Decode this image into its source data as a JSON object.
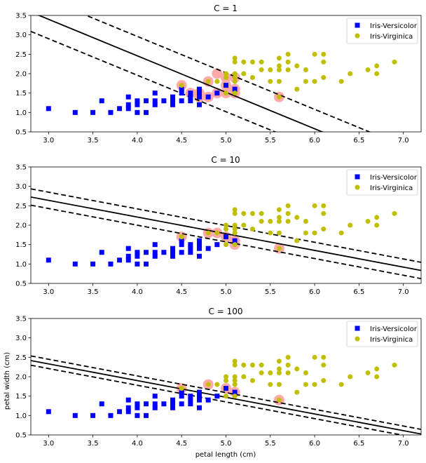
{
  "chart_data": [
    {
      "type": "scatter",
      "title": "C = 1",
      "xlabel": "",
      "ylabel": "",
      "xlim": [
        2.8,
        7.2
      ],
      "ylim": [
        0.5,
        3.5
      ],
      "xticks": [
        "3.0",
        "3.5",
        "4.0",
        "4.5",
        "5.0",
        "5.5",
        "6.0",
        "6.5",
        "7.0"
      ],
      "yticks": [
        "0.5",
        "1.0",
        "1.5",
        "2.0",
        "2.5",
        "3.0",
        "3.5"
      ],
      "decision_line": {
        "intercept": 6.22,
        "slope": -0.94
      },
      "margin_offset": 0.5,
      "support_vectors": [
        [
          4.5,
          1.7
        ],
        [
          4.6,
          1.5
        ],
        [
          4.7,
          1.4
        ],
        [
          4.7,
          1.5
        ],
        [
          4.8,
          1.8
        ],
        [
          4.8,
          1.4
        ],
        [
          4.9,
          1.5
        ],
        [
          4.9,
          2.0
        ],
        [
          5.0,
          1.7
        ],
        [
          5.0,
          1.5
        ],
        [
          5.0,
          1.9
        ],
        [
          5.1,
          1.5
        ],
        [
          5.1,
          1.6
        ],
        [
          5.1,
          1.9
        ],
        [
          5.6,
          1.4
        ]
      ]
    },
    {
      "type": "scatter",
      "title": "C = 10",
      "xlabel": "",
      "ylabel": "",
      "xlim": [
        2.8,
        7.2
      ],
      "ylim": [
        0.5,
        3.5
      ],
      "xticks": [
        "3.0",
        "3.5",
        "4.0",
        "4.5",
        "5.0",
        "5.5",
        "6.0",
        "6.5",
        "7.0"
      ],
      "yticks": [
        "0.5",
        "1.0",
        "1.5",
        "2.0",
        "2.5",
        "3.0",
        "3.5"
      ],
      "decision_line": {
        "intercept": 3.93,
        "slope": -0.43
      },
      "margin_offset": 0.21,
      "support_vectors": [
        [
          4.5,
          1.7
        ],
        [
          4.8,
          1.8
        ],
        [
          4.9,
          1.8
        ],
        [
          5.0,
          1.7
        ],
        [
          5.1,
          1.6
        ],
        [
          5.1,
          1.5
        ],
        [
          5.6,
          1.4
        ]
      ]
    },
    {
      "type": "scatter",
      "title": "C = 100",
      "xlabel": "petal length (cm)",
      "ylabel": "petal width (cm)",
      "xlim": [
        2.8,
        7.2
      ],
      "ylim": [
        0.5,
        3.5
      ],
      "xticks": [
        "3.0",
        "3.5",
        "4.0",
        "4.5",
        "5.0",
        "5.5",
        "6.0",
        "6.5",
        "7.0"
      ],
      "yticks": [
        "0.5",
        "1.0",
        "1.5",
        "2.0",
        "2.5",
        "3.0",
        "3.5"
      ],
      "decision_line": {
        "intercept": 3.62,
        "slope": -0.43
      },
      "margin_offset": 0.12,
      "support_vectors": [
        [
          4.5,
          1.7
        ],
        [
          4.8,
          1.8
        ],
        [
          5.0,
          1.7
        ],
        [
          5.1,
          1.6
        ],
        [
          5.6,
          1.4
        ]
      ]
    }
  ],
  "legend": {
    "versicolor_label": "Iris-Versicolor",
    "virginica_label": "Iris-Virginica",
    "position": "top-right"
  },
  "series": {
    "versicolor": {
      "name": "Iris-Versicolor",
      "color": "#0000ff",
      "marker": "square",
      "points": [
        [
          3.0,
          1.1
        ],
        [
          3.3,
          1.0
        ],
        [
          3.5,
          1.0
        ],
        [
          3.6,
          1.3
        ],
        [
          3.7,
          1.0
        ],
        [
          3.8,
          1.1
        ],
        [
          3.9,
          1.1
        ],
        [
          3.9,
          1.2
        ],
        [
          3.9,
          1.4
        ],
        [
          4.0,
          1.0
        ],
        [
          4.0,
          1.2
        ],
        [
          4.0,
          1.3
        ],
        [
          4.1,
          1.0
        ],
        [
          4.1,
          1.3
        ],
        [
          4.2,
          1.2
        ],
        [
          4.2,
          1.3
        ],
        [
          4.2,
          1.5
        ],
        [
          4.3,
          1.3
        ],
        [
          4.4,
          1.2
        ],
        [
          4.4,
          1.3
        ],
        [
          4.4,
          1.4
        ],
        [
          4.5,
          1.3
        ],
        [
          4.5,
          1.5
        ],
        [
          4.5,
          1.6
        ],
        [
          4.6,
          1.3
        ],
        [
          4.6,
          1.4
        ],
        [
          4.6,
          1.5
        ],
        [
          4.7,
          1.2
        ],
        [
          4.7,
          1.4
        ],
        [
          4.7,
          1.5
        ],
        [
          4.7,
          1.6
        ],
        [
          4.8,
          1.4
        ],
        [
          4.9,
          1.5
        ],
        [
          5.0,
          1.7
        ],
        [
          5.1,
          1.6
        ]
      ]
    },
    "virginica": {
      "name": "Iris-Virginica",
      "color": "#bfbf00",
      "marker": "circle",
      "points": [
        [
          4.5,
          1.7
        ],
        [
          4.8,
          1.8
        ],
        [
          4.9,
          1.8
        ],
        [
          5.0,
          1.5
        ],
        [
          5.0,
          1.9
        ],
        [
          5.0,
          2.0
        ],
        [
          5.1,
          1.5
        ],
        [
          5.1,
          1.8
        ],
        [
          5.1,
          1.9
        ],
        [
          5.1,
          2.0
        ],
        [
          5.1,
          2.3
        ],
        [
          5.1,
          2.4
        ],
        [
          5.2,
          2.0
        ],
        [
          5.2,
          2.3
        ],
        [
          5.3,
          1.9
        ],
        [
          5.3,
          2.3
        ],
        [
          5.4,
          2.1
        ],
        [
          5.4,
          2.3
        ],
        [
          5.5,
          1.8
        ],
        [
          5.5,
          2.1
        ],
        [
          5.6,
          1.4
        ],
        [
          5.6,
          1.8
        ],
        [
          5.6,
          2.1
        ],
        [
          5.6,
          2.2
        ],
        [
          5.6,
          2.4
        ],
        [
          5.7,
          2.1
        ],
        [
          5.7,
          2.3
        ],
        [
          5.7,
          2.5
        ],
        [
          5.8,
          1.6
        ],
        [
          5.8,
          2.2
        ],
        [
          5.9,
          1.8
        ],
        [
          5.9,
          2.1
        ],
        [
          6.0,
          1.8
        ],
        [
          6.0,
          2.5
        ],
        [
          6.1,
          1.9
        ],
        [
          6.1,
          2.3
        ],
        [
          6.1,
          2.5
        ],
        [
          6.3,
          1.8
        ],
        [
          6.4,
          2.0
        ],
        [
          6.6,
          2.1
        ],
        [
          6.7,
          2.0
        ],
        [
          6.7,
          2.2
        ],
        [
          6.9,
          2.3
        ]
      ]
    }
  },
  "colors": {
    "support_vector_halo": "#ffaaaa",
    "decision_boundary": "#000000",
    "axis": "#000000",
    "legend_border": "#cccccc"
  }
}
